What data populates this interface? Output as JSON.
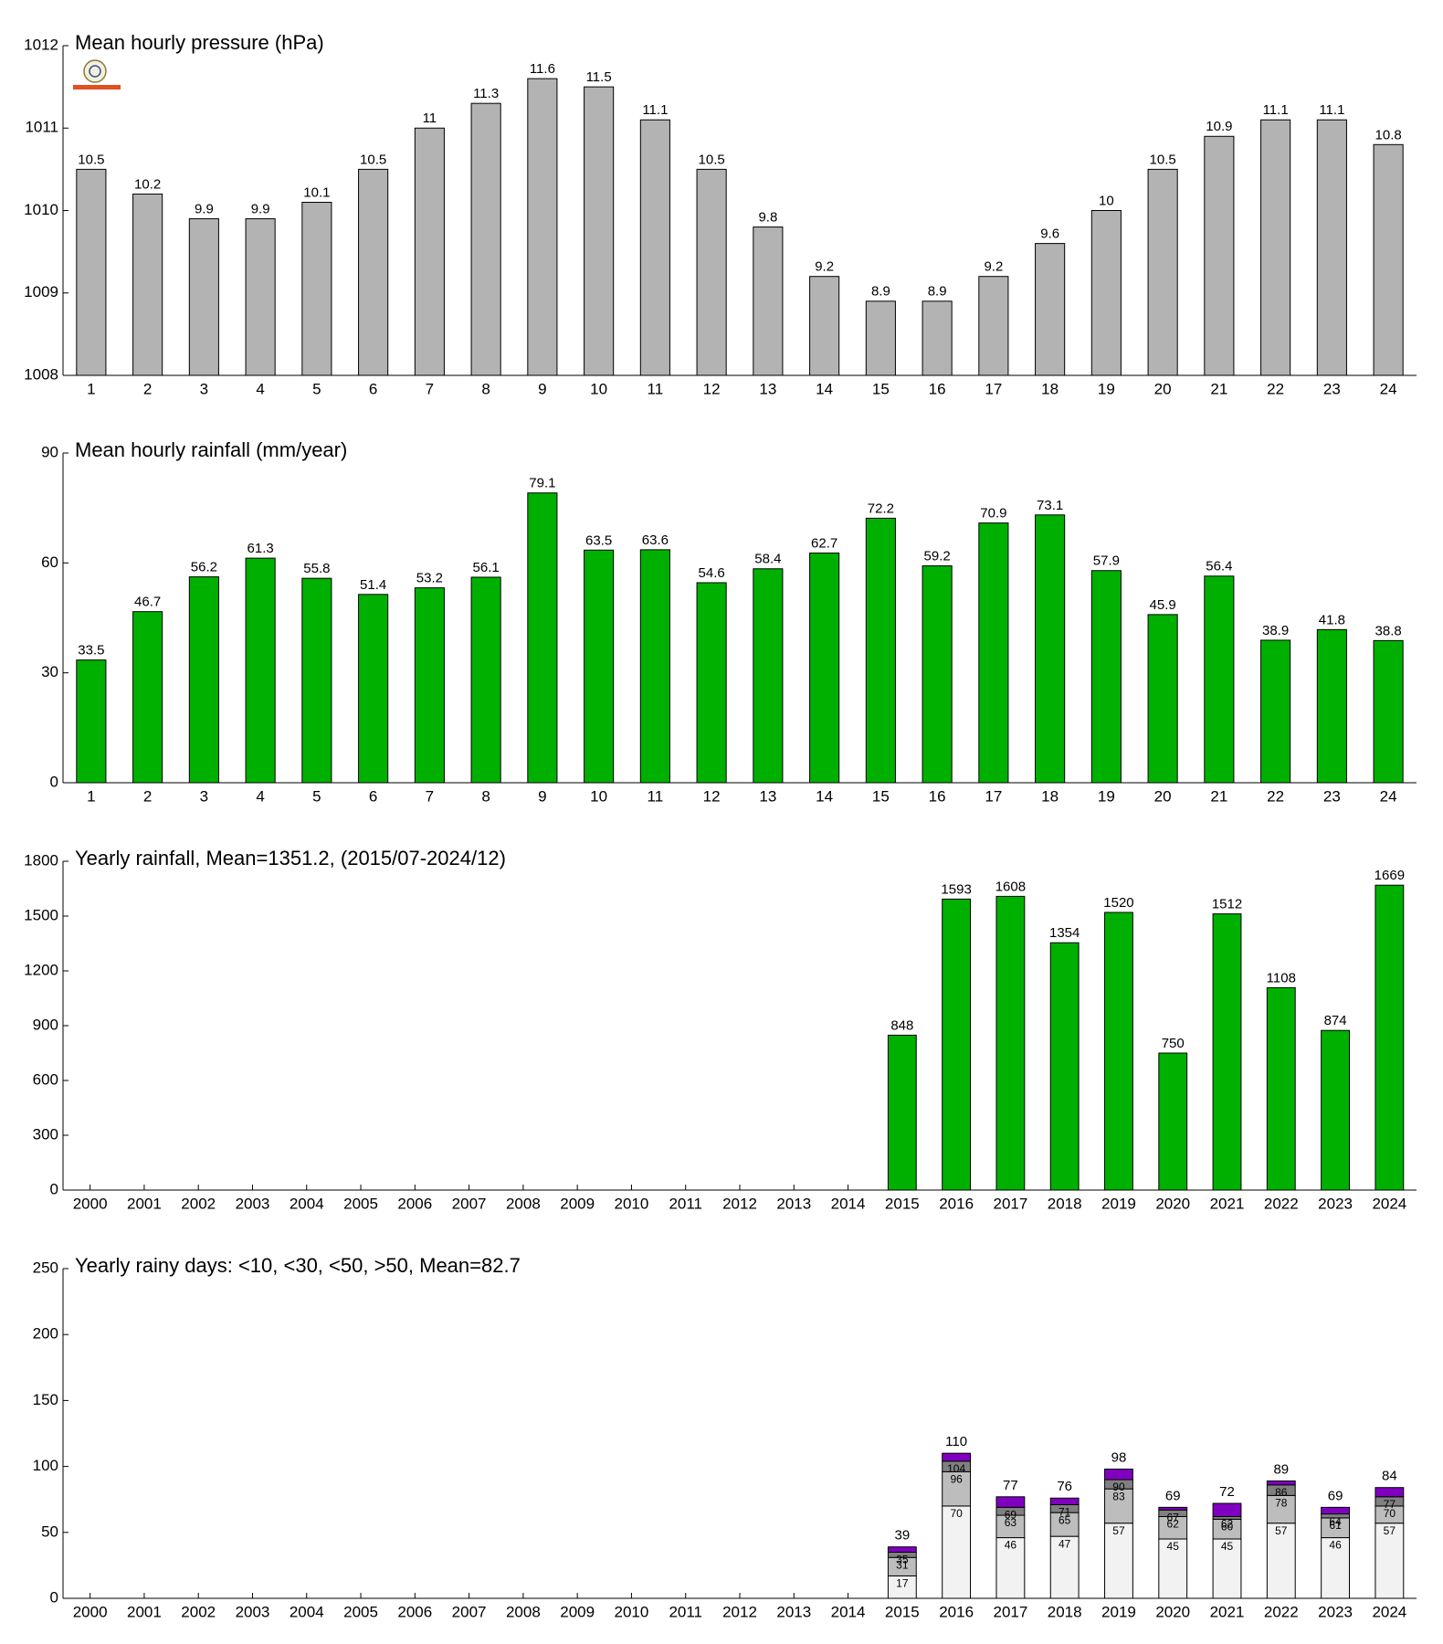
{
  "chart_data": [
    {
      "type": "bar",
      "title": "Mean hourly pressure (hPa)",
      "categories": [
        "1",
        "2",
        "3",
        "4",
        "5",
        "6",
        "7",
        "8",
        "9",
        "10",
        "11",
        "12",
        "13",
        "14",
        "15",
        "16",
        "17",
        "18",
        "19",
        "20",
        "21",
        "22",
        "23",
        "24"
      ],
      "values": [
        1010.5,
        1010.2,
        1009.9,
        1009.9,
        1010.1,
        1010.5,
        1011,
        1011.3,
        1011.6,
        1011.5,
        1011.1,
        1010.5,
        1009.8,
        1009.2,
        1008.9,
        1008.9,
        1009.2,
        1009.6,
        1010,
        1010.5,
        1010.9,
        1011.1,
        1011.1,
        1010.8
      ],
      "value_labels": [
        "10.5",
        "10.2",
        "9.9",
        "9.9",
        "10.1",
        "10.5",
        "11",
        "11.3",
        "11.6",
        "11.5",
        "11.1",
        "10.5",
        "9.8",
        "9.2",
        "8.9",
        "8.9",
        "9.2",
        "9.6",
        "10",
        "10.5",
        "10.9",
        "11.1",
        "11.1",
        "10.8"
      ],
      "color": "#b3b3b3",
      "ylim": [
        1008,
        1012
      ],
      "yticks": [
        1008,
        1009,
        1010,
        1011,
        1012
      ]
    },
    {
      "type": "bar",
      "title": "Mean hourly rainfall (mm/year)",
      "categories": [
        "1",
        "2",
        "3",
        "4",
        "5",
        "6",
        "7",
        "8",
        "9",
        "10",
        "11",
        "12",
        "13",
        "14",
        "15",
        "16",
        "17",
        "18",
        "19",
        "20",
        "21",
        "22",
        "23",
        "24"
      ],
      "values": [
        33.5,
        46.7,
        56.2,
        61.3,
        55.8,
        51.4,
        53.2,
        56.1,
        79.1,
        63.5,
        63.6,
        54.6,
        58.4,
        62.7,
        72.2,
        59.2,
        70.9,
        73.1,
        57.9,
        45.9,
        56.4,
        38.9,
        41.8,
        38.8
      ],
      "color": "#00b000",
      "ylim": [
        0,
        90
      ],
      "yticks": [
        0,
        30,
        60,
        90
      ]
    },
    {
      "type": "bar",
      "title": "Yearly rainfall, Mean=1351.2, (2015/07-2024/12)",
      "categories": [
        "2000",
        "2001",
        "2002",
        "2003",
        "2004",
        "2005",
        "2006",
        "2007",
        "2008",
        "2009",
        "2010",
        "2011",
        "2012",
        "2013",
        "2014",
        "2015",
        "2016",
        "2017",
        "2018",
        "2019",
        "2020",
        "2021",
        "2022",
        "2023",
        "2024"
      ],
      "values": [
        null,
        null,
        null,
        null,
        null,
        null,
        null,
        null,
        null,
        null,
        null,
        null,
        null,
        null,
        null,
        848,
        1593,
        1608,
        1354,
        1520,
        750,
        1512,
        1108,
        874,
        1669
      ],
      "color": "#00b000",
      "ylim": [
        0,
        1800
      ],
      "yticks": [
        0,
        300,
        600,
        900,
        1200,
        1500,
        1800
      ]
    },
    {
      "type": "stacked_bar",
      "title": "Yearly rainy days: <10, <30, <50, >50, Mean=82.7",
      "categories": [
        "2000",
        "2001",
        "2002",
        "2003",
        "2004",
        "2005",
        "2006",
        "2007",
        "2008",
        "2009",
        "2010",
        "2011",
        "2012",
        "2013",
        "2014",
        "2015",
        "2016",
        "2017",
        "2018",
        "2019",
        "2020",
        "2021",
        "2022",
        "2023",
        "2024"
      ],
      "series": [
        {
          "color": "#f2f2f2",
          "values": [
            null,
            null,
            null,
            null,
            null,
            null,
            null,
            null,
            null,
            null,
            null,
            null,
            null,
            null,
            null,
            17,
            70,
            46,
            47,
            57,
            45,
            45,
            57,
            46,
            57
          ],
          "value_labels": [
            null,
            null,
            null,
            null,
            null,
            null,
            null,
            null,
            null,
            null,
            null,
            null,
            null,
            null,
            null,
            "17",
            "70",
            "46",
            "47",
            "57",
            "45",
            "45",
            "57",
            "46",
            "57"
          ]
        },
        {
          "color": "#bdbdbd",
          "values": [
            null,
            null,
            null,
            null,
            null,
            null,
            null,
            null,
            null,
            null,
            null,
            null,
            null,
            null,
            null,
            14,
            26,
            17,
            18,
            26,
            17,
            15,
            21,
            15,
            13
          ],
          "value_labels": [
            null,
            null,
            null,
            null,
            null,
            null,
            null,
            null,
            null,
            null,
            null,
            null,
            null,
            null,
            null,
            "31",
            "96",
            "63",
            "65",
            "83",
            "62",
            "60",
            "78",
            "61",
            "70"
          ]
        },
        {
          "color": "#808080",
          "values": [
            null,
            null,
            null,
            null,
            null,
            null,
            null,
            null,
            null,
            null,
            null,
            null,
            null,
            null,
            null,
            4,
            8,
            6,
            6,
            7,
            5,
            2,
            8,
            3,
            7
          ],
          "value_labels": [
            null,
            null,
            null,
            null,
            null,
            null,
            null,
            null,
            null,
            null,
            null,
            null,
            null,
            null,
            null,
            "35",
            "104",
            "69",
            "71",
            "90",
            "67",
            "62",
            "86",
            "64",
            "77"
          ]
        },
        {
          "color": "#8000c0",
          "values": [
            null,
            null,
            null,
            null,
            null,
            null,
            null,
            null,
            null,
            null,
            null,
            null,
            null,
            null,
            null,
            4,
            6,
            8,
            5,
            8,
            2,
            10,
            3,
            5,
            7
          ],
          "value_labels": [
            null,
            null,
            null,
            null,
            null,
            null,
            null,
            null,
            null,
            null,
            null,
            null,
            null,
            null,
            null,
            "39",
            "110",
            "77",
            "76",
            "98",
            "69",
            "72",
            "89",
            "69",
            "84"
          ]
        }
      ],
      "ylim": [
        0,
        250
      ],
      "yticks": [
        0,
        50,
        100,
        150,
        200,
        250
      ]
    }
  ]
}
